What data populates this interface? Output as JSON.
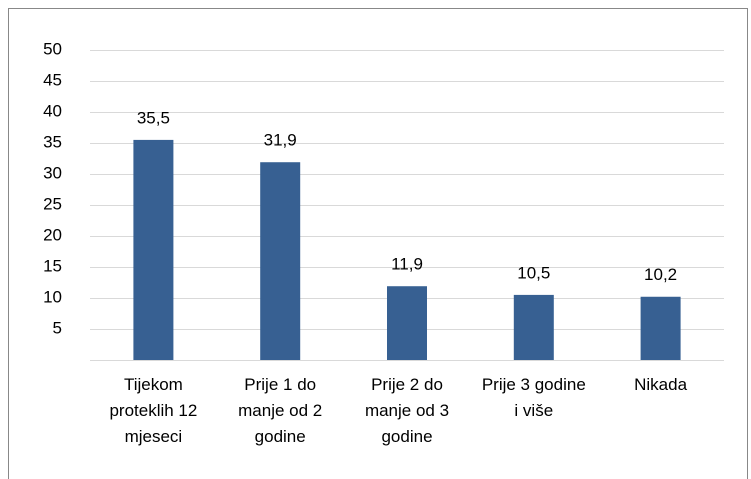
{
  "chart_data": {
    "type": "bar",
    "categories": [
      "Tijekom proteklih 12 mjeseci",
      "Prije 1 do manje od 2 godine",
      "Prije 2 do manje od 3 godine",
      "Prije 3 godine i više",
      "Nikada"
    ],
    "values": [
      35.5,
      31.9,
      11.9,
      10.5,
      10.2
    ],
    "value_labels": [
      "35,5",
      "31,9",
      "11,9",
      "10,5",
      "10,2"
    ],
    "color": "#376092",
    "ylim": [
      0,
      50
    ],
    "yticks": [
      5,
      10,
      15,
      20,
      25,
      30,
      35,
      40,
      45,
      50
    ],
    "grid": true
  }
}
